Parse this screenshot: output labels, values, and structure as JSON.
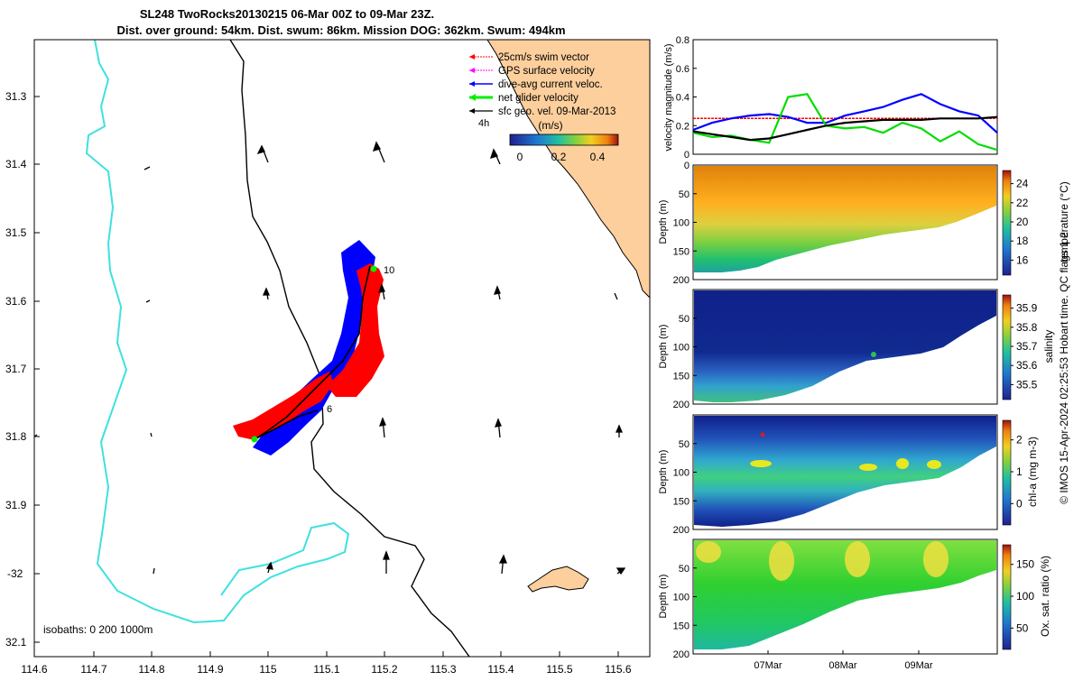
{
  "figure": {
    "title_line1": "SL248 TwoRocks20130215 06-Mar 00Z to 09-Mar 23Z.",
    "title_line2": "Dist. over ground: 54km. Dist. swum: 86km. Mission DOG: 362km. Swum: 494km",
    "side_credit": "© IMOS 15-Apr-2024 02:25:53 Hobart time. QC flags 1  2"
  },
  "map": {
    "lon_ticks": [
      "114.6",
      "114.7",
      "114.8",
      "114.9",
      "115",
      "115.1",
      "115.2",
      "115.3",
      "115.4",
      "115.5",
      "115.6"
    ],
    "lat_ticks": [
      "31.3",
      "31.4",
      "31.5",
      "31.6",
      "31.7",
      "31.8",
      "31.9",
      "-32",
      "32.1"
    ],
    "isobath_label": "isobaths: 0   200  1000m",
    "time_marker": "4h",
    "day_labels": [
      "10",
      "6"
    ],
    "legend": [
      {
        "label": "25cm/s swim vector",
        "color": "#ff0000"
      },
      {
        "label": "GPS surface velocity",
        "color": "#ff00ff"
      },
      {
        "label": "dive-avg current veloc.",
        "color": "#0000ff"
      },
      {
        "label": "net glider velocity",
        "color": "#00ee00"
      },
      {
        "label": "sfc geo. vel. 09-Mar-2013",
        "color": "#000000"
      }
    ],
    "colorbar": {
      "unit": "(m/s)",
      "ticks": [
        "0",
        "0.2",
        "0.4"
      ]
    },
    "colors": {
      "land": "#fccf9c",
      "isobath_200": "#000000",
      "isobath_0": "#40e0e0",
      "track_blue": "#0000ff",
      "track_red": "#ff0000"
    }
  },
  "chart_data": [
    {
      "type": "line",
      "ylabel": "velocity magnitude (m/s)",
      "ylim": [
        0,
        0.8
      ],
      "y_ticks": [
        "0",
        "0.2",
        "0.4",
        "0.6",
        "0.8"
      ],
      "series": [
        {
          "color": "#ff0000",
          "values": [
            0.25,
            0.25,
            0.25,
            0.25,
            0.25,
            0.25,
            0.25,
            0.25,
            0.25,
            0.25,
            0.25,
            0.25,
            0.25,
            0.25,
            0.25,
            0.25,
            0.25
          ]
        },
        {
          "color": "#0000ff",
          "values": [
            0.17,
            0.22,
            0.25,
            0.27,
            0.28,
            0.26,
            0.22,
            0.22,
            0.27,
            0.3,
            0.33,
            0.38,
            0.42,
            0.35,
            0.3,
            0.27,
            0.15
          ]
        },
        {
          "color": "#00dd00",
          "values": [
            0.15,
            0.12,
            0.13,
            0.1,
            0.08,
            0.4,
            0.42,
            0.2,
            0.18,
            0.19,
            0.15,
            0.22,
            0.18,
            0.09,
            0.16,
            0.07,
            0.03
          ]
        },
        {
          "color": "#000000",
          "values": [
            0.16,
            0.14,
            0.12,
            0.1,
            0.11,
            0.14,
            0.17,
            0.2,
            0.22,
            0.23,
            0.24,
            0.24,
            0.24,
            0.25,
            0.25,
            0.25,
            0.26
          ]
        }
      ]
    },
    {
      "type": "heatmap",
      "ylabel": "Depth (m)",
      "clabel": "temperature (°C)",
      "ylim": [
        200,
        0
      ],
      "y_ticks": [
        "0",
        "50",
        "100",
        "150",
        "200"
      ],
      "c_ticks": [
        "16",
        "18",
        "20",
        "22",
        "24"
      ]
    },
    {
      "type": "heatmap",
      "ylabel": "Depth (m)",
      "clabel": "salinity",
      "ylim": [
        200,
        0
      ],
      "y_ticks": [
        "50",
        "100",
        "150",
        "200"
      ],
      "c_ticks": [
        "35.5",
        "35.6",
        "35.7",
        "35.8",
        "35.9"
      ]
    },
    {
      "type": "heatmap",
      "ylabel": "Depth (m)",
      "clabel": "chl-a (mg m-3)",
      "ylim": [
        200,
        0
      ],
      "y_ticks": [
        "50",
        "100",
        "150",
        "200"
      ],
      "c_ticks": [
        "0",
        "1",
        "2"
      ]
    },
    {
      "type": "heatmap",
      "ylabel": "Depth (m)",
      "clabel": "Ox. sat. ratio (%)",
      "ylim": [
        200,
        0
      ],
      "y_ticks": [
        "50",
        "100",
        "150",
        "200"
      ],
      "c_ticks": [
        "50",
        "100",
        "150"
      ],
      "x_ticks": [
        "07Mar",
        "08Mar",
        "09Mar"
      ]
    }
  ]
}
